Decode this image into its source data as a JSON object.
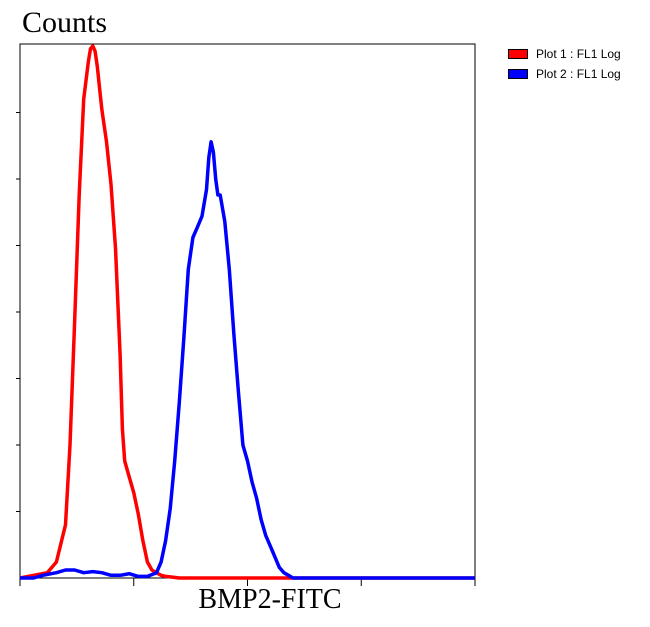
{
  "chart_data": {
    "type": "line",
    "title": "",
    "ylabel": "Counts",
    "xlabel": "BMP2-FITC",
    "x_scale": "log",
    "xlim": [
      0,
      100
    ],
    "ylim": [
      0,
      100
    ],
    "grid": false,
    "legend_position": "top-right",
    "series": [
      {
        "name": "Plot 1 : FL1 Log",
        "color": "#ff0000",
        "x": [
          0,
          3,
          6,
          8,
          10,
          11,
          12,
          13,
          14,
          15,
          15.5,
          16,
          16.5,
          17,
          17.5,
          18,
          19,
          20,
          21,
          22,
          22.5,
          23,
          24,
          25,
          26,
          27,
          28,
          29,
          30,
          31,
          32,
          33,
          35,
          40,
          50,
          60,
          70,
          80,
          90,
          100
        ],
        "values": [
          0,
          0.5,
          1,
          3,
          10,
          25,
          48,
          72,
          90,
          97,
          99.5,
          100,
          99,
          96,
          92,
          88,
          82,
          74,
          62,
          42,
          28,
          22,
          19,
          16,
          12,
          7,
          3,
          1.5,
          1,
          0.5,
          0.3,
          0.2,
          0,
          0,
          0,
          0,
          0,
          0,
          0,
          0
        ]
      },
      {
        "name": "Plot 2 : FL1 Log",
        "color": "#0000ff",
        "x": [
          0,
          3,
          5,
          8,
          10,
          12,
          14,
          16,
          18,
          20,
          22,
          24,
          26,
          28,
          30,
          31,
          32,
          33,
          34,
          35,
          36,
          37,
          38,
          39,
          40,
          41,
          41.5,
          42,
          42.5,
          43,
          43.5,
          44,
          45,
          46,
          47,
          48,
          49,
          50,
          51,
          52,
          53,
          54,
          55,
          56,
          57,
          58,
          59,
          60,
          62,
          65,
          70,
          80,
          90,
          100
        ],
        "values": [
          0,
          0,
          0.5,
          1,
          1.5,
          1.5,
          1,
          1.2,
          1,
          0.5,
          0.5,
          0.8,
          0.3,
          0.3,
          1,
          3,
          7,
          13,
          22,
          33,
          45,
          58,
          64,
          66,
          68,
          73,
          79,
          82,
          80,
          75,
          72,
          72,
          67,
          58,
          46,
          35,
          25,
          22,
          18,
          15,
          11,
          8,
          6,
          4,
          2,
          1,
          0.5,
          0,
          0,
          0,
          0,
          0,
          0,
          0
        ]
      }
    ]
  }
}
